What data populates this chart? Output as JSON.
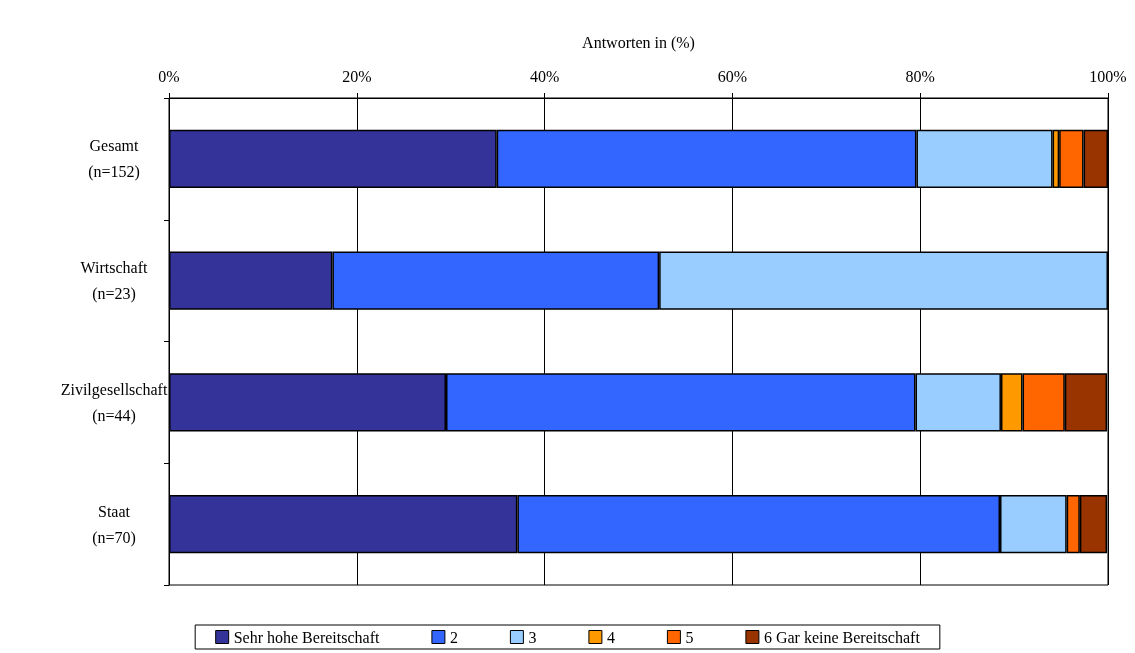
{
  "chart_data": {
    "type": "bar",
    "orientation": "horizontal",
    "stacked": true,
    "xlabel": "Antworten in (%)",
    "categories": [
      "Gesamt\n(n=152)",
      "Wirtschaft\n(n=23)",
      "Zivilgesellschaft\n(n=44)",
      "Staat\n(n=70)"
    ],
    "series": [
      {
        "name": "Sehr hohe Bereitschaft",
        "color": "#333399",
        "values": [
          34.9,
          17.4,
          29.5,
          37.1
        ]
      },
      {
        "name": "2",
        "color": "#3366ff",
        "values": [
          44.7,
          34.8,
          50,
          51.4
        ]
      },
      {
        "name": "3",
        "color": "#99ccff",
        "values": [
          14.5,
          47.8,
          9.1,
          7.1
        ]
      },
      {
        "name": "4",
        "color": "#ff9900",
        "values": [
          0.7,
          0,
          2.3,
          0
        ]
      },
      {
        "name": "5",
        "color": "#ff6600",
        "values": [
          2.6,
          0,
          4.5,
          1.4
        ]
      },
      {
        "name": "6 Gar keine Bereitschaft",
        "color": "#993300",
        "values": [
          2.6,
          0,
          4.5,
          2.9
        ]
      }
    ],
    "xlim": [
      0,
      100
    ],
    "xticks": [
      {
        "value": 0,
        "label": "0%"
      },
      {
        "value": 20,
        "label": "20%"
      },
      {
        "value": 40,
        "label": "40%"
      },
      {
        "value": 60,
        "label": "60%"
      },
      {
        "value": 80,
        "label": "80%"
      },
      {
        "value": 100,
        "label": "100%"
      }
    ],
    "grid": "x",
    "legend": "bottom"
  }
}
